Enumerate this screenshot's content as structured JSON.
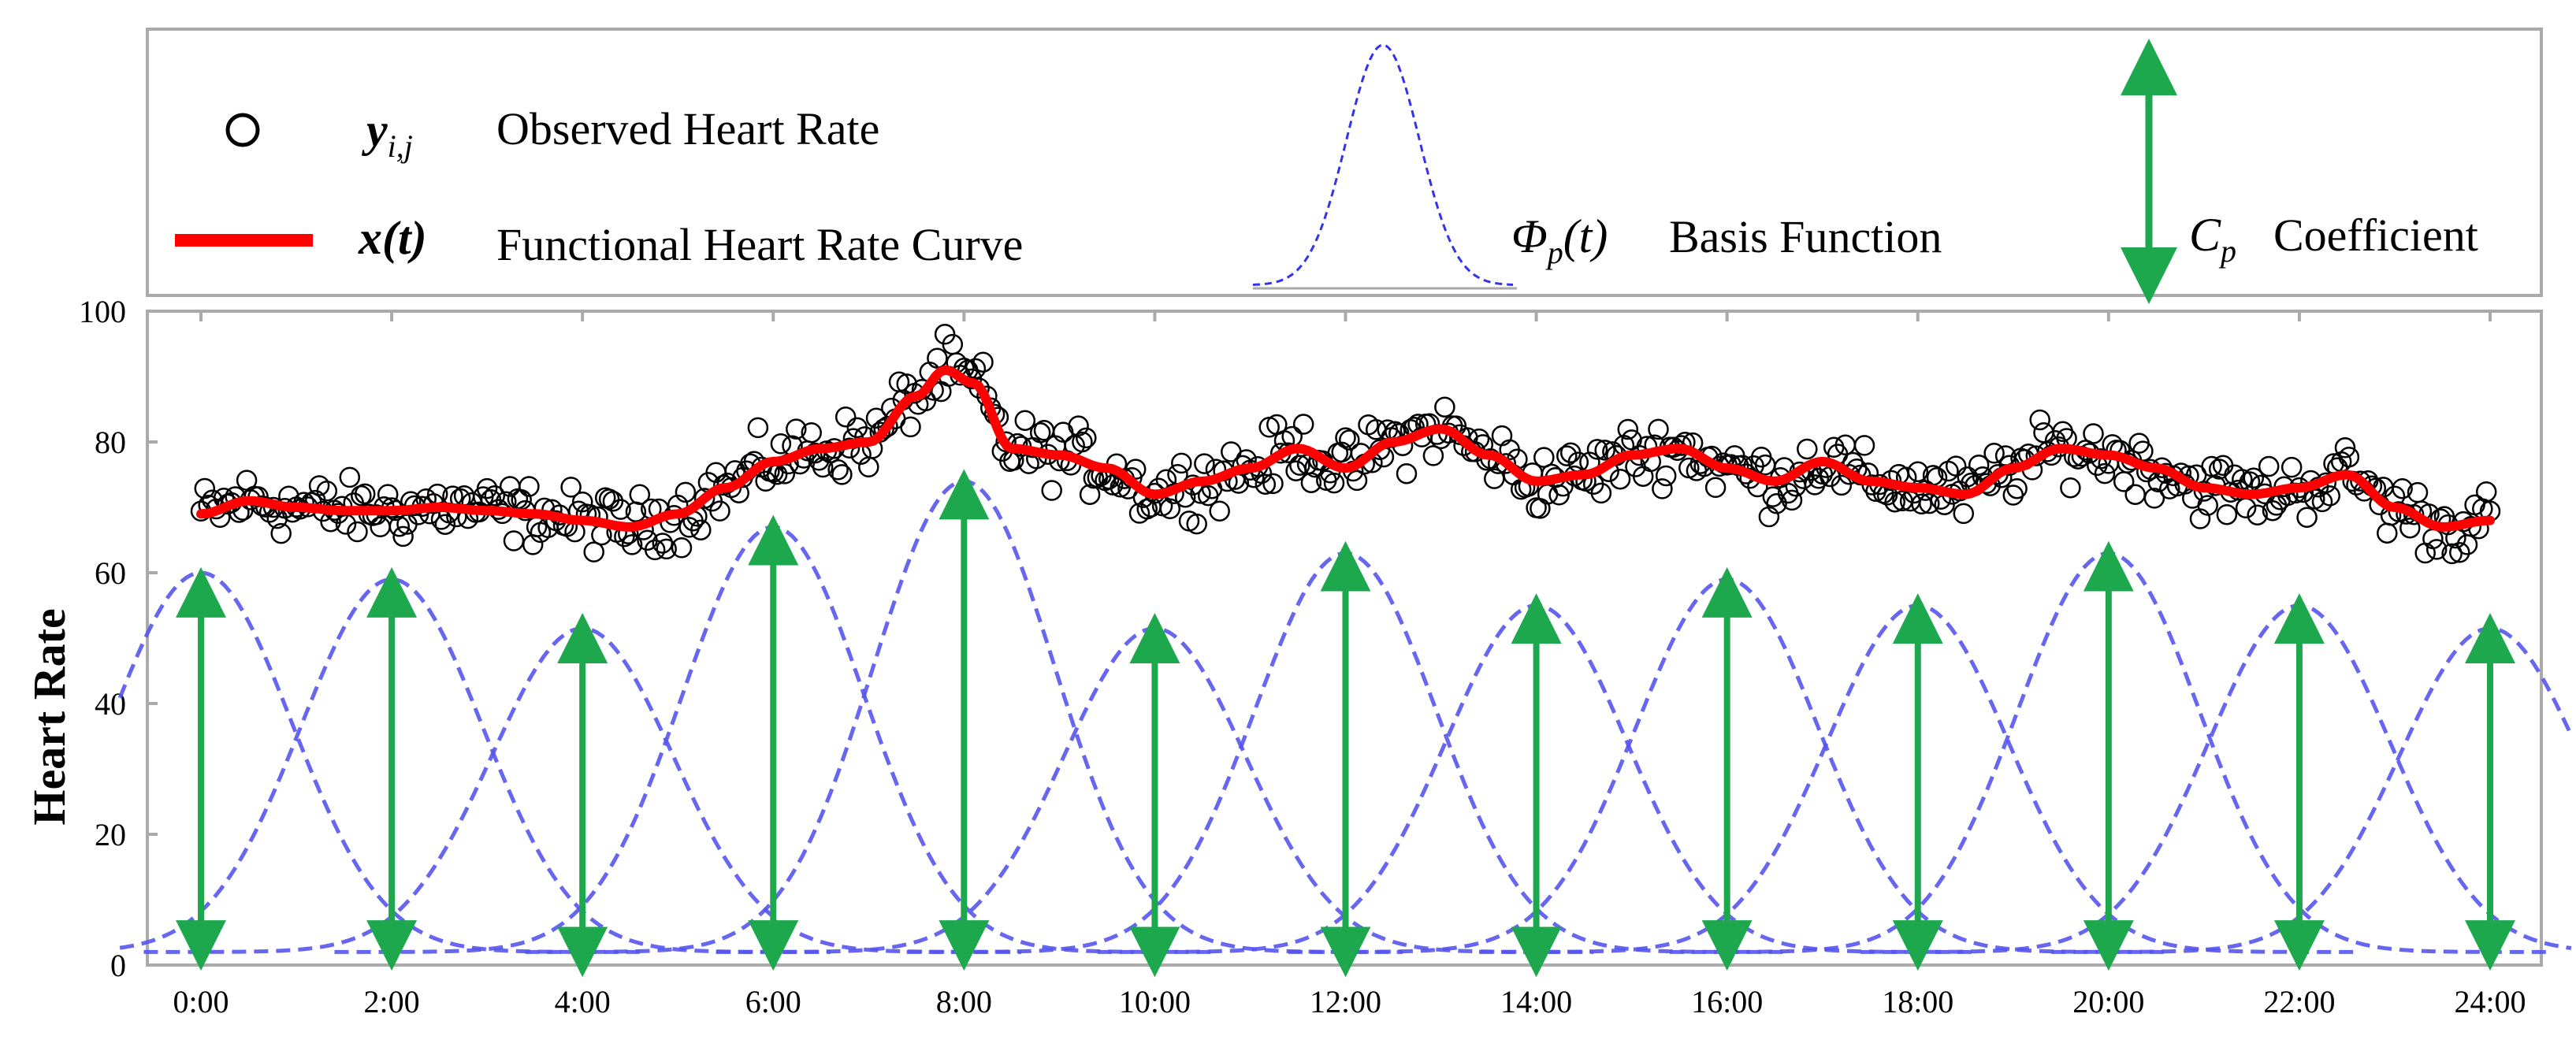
{
  "chart_data": {
    "type": "line",
    "title": "",
    "xlabel": "",
    "ylabel": "Heart Rate",
    "ylim": [
      0,
      100
    ],
    "xlim": [
      0,
      24
    ],
    "y_ticks": [
      "0",
      "20",
      "40",
      "60",
      "80",
      "100"
    ],
    "x_ticks": [
      "0:00",
      "2:00",
      "4:00",
      "6:00",
      "8:00",
      "10:00",
      "12:00",
      "14:00",
      "16:00",
      "18:00",
      "20:00",
      "22:00",
      "24:00"
    ],
    "legend": [
      {
        "symbol": "y_{i,j}",
        "label": "Observed Heart Rate"
      },
      {
        "symbol": "x(t)",
        "label": "Functional Heart Rate Curve"
      },
      {
        "symbol": "Φ_p(t)",
        "label": "Basis Function"
      },
      {
        "symbol": "C_p",
        "label": "Coefficient"
      }
    ],
    "functional_curve": {
      "name": "Functional Heart Rate Curve",
      "x": [
        0,
        0.5,
        1,
        1.5,
        2,
        2.5,
        3,
        3.5,
        4,
        4.5,
        5,
        5.5,
        6,
        6.5,
        7,
        7.5,
        7.8,
        8.1,
        8.5,
        9,
        9.5,
        10,
        10.5,
        11,
        11.5,
        12,
        12.5,
        13,
        13.5,
        14,
        14.5,
        15,
        15.5,
        16,
        16.5,
        17,
        17.5,
        18,
        18.5,
        19,
        19.5,
        20,
        20.5,
        21,
        21.5,
        22,
        22.5,
        23,
        23.5,
        24
      ],
      "y": [
        69,
        71,
        70,
        69.5,
        69.5,
        70,
        69.5,
        69,
        68,
        67,
        69,
        73,
        77,
        79,
        80,
        87,
        91,
        89,
        79,
        78,
        76,
        72,
        74,
        76,
        79,
        76,
        80,
        82,
        78,
        74,
        75,
        78,
        79,
        76,
        74,
        77,
        74,
        73,
        72,
        76,
        79,
        78,
        76,
        73,
        72,
        73,
        75,
        70,
        67,
        68
      ]
    },
    "observations": {
      "name": "Observed Heart Rate",
      "noise_amplitude": 3.5,
      "points_per_hour": 25
    },
    "basis_functions": {
      "name": "Basis Function",
      "centers": [
        0,
        2,
        4,
        6,
        8,
        10,
        12,
        14,
        16,
        18,
        20,
        22,
        24
      ],
      "peaks": [
        60,
        59,
        51.5,
        67,
        74,
        51.5,
        63,
        55,
        59,
        55,
        63,
        55,
        51.5
      ],
      "baseline": 2,
      "sigma": 0.95
    },
    "coefficients": {
      "name": "Coefficient",
      "x": [
        0,
        2,
        4,
        6,
        8,
        10,
        12,
        14,
        16,
        18,
        20,
        22,
        24
      ],
      "top": [
        57,
        57,
        50,
        65,
        72,
        50,
        61,
        53,
        57,
        53,
        61,
        53,
        50
      ],
      "bottom": [
        3,
        3,
        2,
        3,
        3,
        2,
        2,
        2,
        3,
        3,
        3,
        3,
        3
      ]
    },
    "colors": {
      "curve": "#ff0000",
      "basis": "#5555ee",
      "coefficient": "#1ea84e",
      "points": "#000000",
      "frame": "#aaaaaa"
    }
  }
}
